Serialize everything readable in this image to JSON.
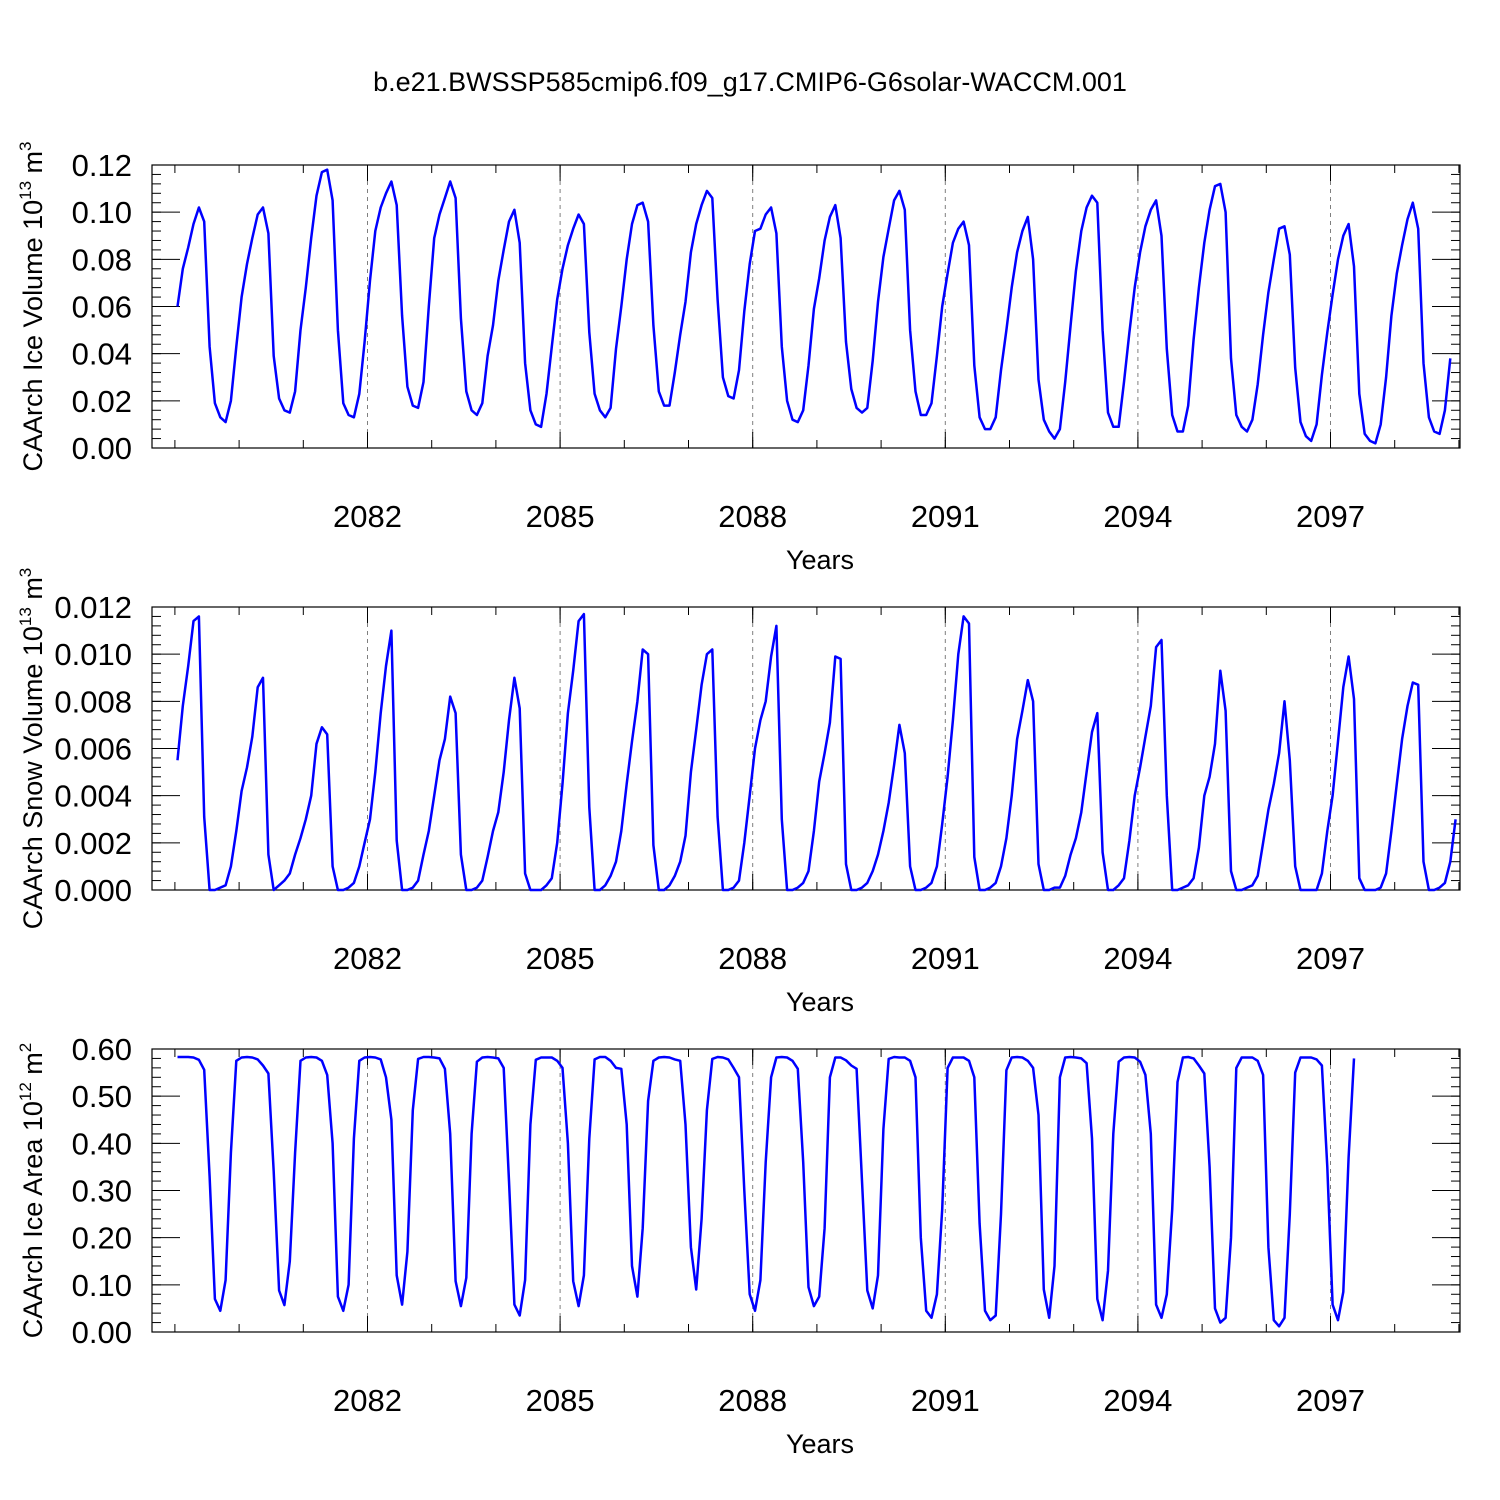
{
  "title": "b.e21.BWSSP585cmip6.f09_g17.CMIP6-G6solar-WACCM.001",
  "colors": {
    "series": "#0000ff",
    "axis": "#000000",
    "grid": "#7f7f7f"
  },
  "chart_data": [
    {
      "type": "line",
      "ylabel": {
        "prefix": "CAArch Ice Volume 10",
        "exp": "13",
        "unit": " m",
        "unit_exp": "3"
      },
      "xlabel": "Years",
      "xlim": [
        2079,
        2099
      ],
      "ylim": [
        0,
        0.12
      ],
      "yticks": [
        0.0,
        0.02,
        0.04,
        0.06,
        0.08,
        0.1,
        0.12
      ],
      "ytick_labels": [
        "0.00",
        "0.02",
        "0.04",
        "0.06",
        "0.08",
        "0.10",
        "0.12"
      ],
      "xticks": [
        2082,
        2085,
        2088,
        2091,
        2094,
        2097
      ],
      "xtick_labels": [
        "2082",
        "2085",
        "2088",
        "2091",
        "2094",
        "2097"
      ],
      "grid": "dashed vertical at labeled years",
      "series": [
        {
          "x_start": 2079.04,
          "x_step": 0.0833,
          "values": [
            0.06,
            0.076,
            0.085,
            0.095,
            0.102,
            0.096,
            0.043,
            0.019,
            0.013,
            0.011,
            0.02,
            0.043,
            0.064,
            0.078,
            0.089,
            0.099,
            0.102,
            0.091,
            0.039,
            0.021,
            0.016,
            0.015,
            0.024,
            0.05,
            0.068,
            0.089,
            0.107,
            0.117,
            0.118,
            0.105,
            0.05,
            0.019,
            0.014,
            0.013,
            0.023,
            0.045,
            0.071,
            0.092,
            0.102,
            0.108,
            0.113,
            0.103,
            0.056,
            0.026,
            0.018,
            0.017,
            0.028,
            0.06,
            0.089,
            0.099,
            0.106,
            0.113,
            0.106,
            0.055,
            0.024,
            0.016,
            0.014,
            0.019,
            0.039,
            0.052,
            0.071,
            0.084,
            0.096,
            0.101,
            0.087,
            0.036,
            0.016,
            0.01,
            0.009,
            0.023,
            0.043,
            0.063,
            0.076,
            0.086,
            0.093,
            0.099,
            0.095,
            0.049,
            0.023,
            0.016,
            0.013,
            0.017,
            0.042,
            0.06,
            0.08,
            0.095,
            0.103,
            0.104,
            0.096,
            0.052,
            0.024,
            0.018,
            0.018,
            0.032,
            0.048,
            0.062,
            0.083,
            0.095,
            0.103,
            0.109,
            0.106,
            0.063,
            0.03,
            0.022,
            0.021,
            0.033,
            0.058,
            0.078,
            0.092,
            0.093,
            0.099,
            0.102,
            0.091,
            0.043,
            0.02,
            0.012,
            0.011,
            0.016,
            0.035,
            0.059,
            0.072,
            0.088,
            0.098,
            0.103,
            0.089,
            0.045,
            0.025,
            0.017,
            0.015,
            0.017,
            0.037,
            0.062,
            0.081,
            0.093,
            0.105,
            0.109,
            0.101,
            0.05,
            0.024,
            0.014,
            0.014,
            0.019,
            0.039,
            0.06,
            0.074,
            0.087,
            0.093,
            0.096,
            0.086,
            0.035,
            0.013,
            0.008,
            0.008,
            0.013,
            0.033,
            0.05,
            0.068,
            0.083,
            0.092,
            0.098,
            0.08,
            0.029,
            0.012,
            0.007,
            0.004,
            0.008,
            0.028,
            0.052,
            0.075,
            0.092,
            0.102,
            0.107,
            0.104,
            0.05,
            0.015,
            0.009,
            0.009,
            0.028,
            0.049,
            0.068,
            0.083,
            0.094,
            0.101,
            0.105,
            0.09,
            0.042,
            0.014,
            0.007,
            0.007,
            0.018,
            0.046,
            0.068,
            0.087,
            0.101,
            0.111,
            0.112,
            0.1,
            0.038,
            0.014,
            0.009,
            0.007,
            0.012,
            0.027,
            0.048,
            0.066,
            0.08,
            0.093,
            0.094,
            0.082,
            0.034,
            0.011,
            0.005,
            0.003,
            0.01,
            0.031,
            0.049,
            0.065,
            0.08,
            0.09,
            0.095,
            0.077,
            0.023,
            0.006,
            0.003,
            0.002,
            0.01,
            0.03,
            0.056,
            0.074,
            0.086,
            0.097,
            0.104,
            0.093,
            0.036,
            0.013,
            0.007,
            0.006,
            0.016,
            0.038
          ]
        }
      ]
    },
    {
      "type": "line",
      "ylabel": {
        "prefix": "CAArch Snow Volume 10",
        "exp": "13",
        "unit": " m",
        "unit_exp": "3"
      },
      "xlabel": "Years",
      "xlim": [
        2079,
        2099
      ],
      "ylim": [
        0,
        0.012
      ],
      "yticks": [
        0.0,
        0.002,
        0.004,
        0.006,
        0.008,
        0.01,
        0.012
      ],
      "ytick_labels": [
        "0.000",
        "0.002",
        "0.004",
        "0.006",
        "0.008",
        "0.010",
        "0.012"
      ],
      "xticks": [
        2082,
        2085,
        2088,
        2091,
        2094,
        2097
      ],
      "xtick_labels": [
        "2082",
        "2085",
        "2088",
        "2091",
        "2094",
        "2097"
      ],
      "grid": "dashed vertical at labeled years",
      "series": [
        {
          "x_start": 2079.04,
          "x_step": 0.0833,
          "values": [
            0.0055,
            0.0078,
            0.0095,
            0.0114,
            0.0116,
            0.0031,
            0.0,
            0.0,
            0.0001,
            0.0002,
            0.001,
            0.0025,
            0.0042,
            0.0052,
            0.0065,
            0.0086,
            0.009,
            0.0015,
            0.0,
            0.0002,
            0.0004,
            0.0007,
            0.0015,
            0.0022,
            0.003,
            0.004,
            0.0062,
            0.0069,
            0.0066,
            0.001,
            0.0,
            0.0,
            0.0001,
            0.0003,
            0.001,
            0.002,
            0.003,
            0.005,
            0.0075,
            0.0095,
            0.011,
            0.0021,
            0.0,
            0.0,
            0.0001,
            0.0004,
            0.0015,
            0.0025,
            0.004,
            0.0055,
            0.0064,
            0.0082,
            0.0075,
            0.0015,
            0.0,
            0.0,
            0.0001,
            0.0004,
            0.0014,
            0.0025,
            0.0033,
            0.005,
            0.0072,
            0.009,
            0.0077,
            0.0007,
            0.0,
            0.0,
            0.0,
            0.0002,
            0.0005,
            0.002,
            0.0045,
            0.0075,
            0.0093,
            0.0114,
            0.0117,
            0.0035,
            0.0,
            0.0,
            0.0002,
            0.0006,
            0.0012,
            0.0025,
            0.0045,
            0.0063,
            0.008,
            0.0102,
            0.01,
            0.0019,
            0.0,
            0.0,
            0.0002,
            0.0006,
            0.0012,
            0.0023,
            0.005,
            0.0068,
            0.0087,
            0.01,
            0.0102,
            0.0031,
            0.0,
            0.0,
            0.0001,
            0.0004,
            0.002,
            0.004,
            0.006,
            0.0072,
            0.008,
            0.0099,
            0.0112,
            0.003,
            0.0,
            0.0,
            0.0001,
            0.0003,
            0.0008,
            0.0025,
            0.0046,
            0.0058,
            0.0071,
            0.0099,
            0.0098,
            0.0011,
            0.0,
            0.0,
            0.0001,
            0.0003,
            0.0008,
            0.0015,
            0.0025,
            0.0037,
            0.0053,
            0.007,
            0.0058,
            0.001,
            0.0,
            0.0,
            0.0001,
            0.0003,
            0.001,
            0.0028,
            0.0048,
            0.0072,
            0.01,
            0.0116,
            0.0113,
            0.0014,
            0.0,
            0.0,
            0.0001,
            0.0003,
            0.001,
            0.0022,
            0.004,
            0.0064,
            0.0076,
            0.0089,
            0.008,
            0.0011,
            0.0,
            0.0,
            0.0001,
            0.0001,
            0.0006,
            0.0015,
            0.0022,
            0.0033,
            0.005,
            0.0067,
            0.0075,
            0.0016,
            0.0,
            0.0,
            0.0002,
            0.0005,
            0.0021,
            0.004,
            0.0052,
            0.0065,
            0.0078,
            0.0103,
            0.0106,
            0.004,
            0.0,
            0.0,
            0.0001,
            0.0002,
            0.0005,
            0.0018,
            0.004,
            0.0048,
            0.0062,
            0.0093,
            0.0076,
            0.0008,
            0.0,
            0.0,
            0.0001,
            0.0002,
            0.0006,
            0.002,
            0.0034,
            0.0045,
            0.0058,
            0.008,
            0.0055,
            0.001,
            0.0,
            0.0,
            0.0,
            0.0,
            0.0007,
            0.0025,
            0.004,
            0.0063,
            0.0086,
            0.0099,
            0.0081,
            0.0005,
            0.0,
            0.0,
            0.0,
            0.0001,
            0.0007,
            0.0025,
            0.0045,
            0.0064,
            0.0078,
            0.0088,
            0.0087,
            0.0012,
            0.0,
            0.0,
            0.0001,
            0.0003,
            0.0012,
            0.003
          ]
        }
      ]
    },
    {
      "type": "line",
      "ylabel": {
        "prefix": "CAArch Ice Area 10",
        "exp": "12",
        "unit": " m",
        "unit_exp": "2"
      },
      "xlabel": "Years",
      "xlim": [
        2079,
        2099
      ],
      "ylim": [
        0,
        0.6
      ],
      "yticks": [
        0.0,
        0.1,
        0.2,
        0.3,
        0.4,
        0.5,
        0.6
      ],
      "ytick_labels": [
        "0.00",
        "0.10",
        "0.20",
        "0.30",
        "0.40",
        "0.50",
        "0.60"
      ],
      "xticks": [
        2082,
        2085,
        2088,
        2091,
        2094,
        2097
      ],
      "xtick_labels": [
        "2082",
        "2085",
        "2088",
        "2091",
        "2094",
        "2097"
      ],
      "grid": "dashed vertical at labeled years",
      "series": [
        {
          "x_start": 2079.04,
          "x_step": 0.0833,
          "values": [
            0.583,
            0.583,
            0.583,
            0.582,
            0.577,
            0.556,
            0.33,
            0.07,
            0.045,
            0.11,
            0.38,
            0.575,
            0.582,
            0.583,
            0.582,
            0.578,
            0.565,
            0.548,
            0.34,
            0.088,
            0.057,
            0.15,
            0.38,
            0.575,
            0.582,
            0.583,
            0.582,
            0.575,
            0.545,
            0.4,
            0.075,
            0.045,
            0.1,
            0.41,
            0.575,
            0.582,
            0.583,
            0.582,
            0.578,
            0.54,
            0.45,
            0.12,
            0.058,
            0.17,
            0.47,
            0.579,
            0.583,
            0.583,
            0.582,
            0.58,
            0.558,
            0.42,
            0.108,
            0.055,
            0.115,
            0.42,
            0.573,
            0.582,
            0.583,
            0.582,
            0.58,
            0.56,
            0.32,
            0.058,
            0.035,
            0.11,
            0.44,
            0.577,
            0.582,
            0.582,
            0.582,
            0.575,
            0.56,
            0.4,
            0.108,
            0.055,
            0.12,
            0.41,
            0.578,
            0.583,
            0.583,
            0.575,
            0.56,
            0.558,
            0.44,
            0.14,
            0.075,
            0.22,
            0.49,
            0.575,
            0.582,
            0.583,
            0.582,
            0.578,
            0.575,
            0.44,
            0.18,
            0.09,
            0.24,
            0.47,
            0.579,
            0.583,
            0.582,
            0.578,
            0.56,
            0.54,
            0.3,
            0.08,
            0.045,
            0.11,
            0.36,
            0.54,
            0.582,
            0.583,
            0.582,
            0.575,
            0.558,
            0.36,
            0.095,
            0.055,
            0.075,
            0.22,
            0.54,
            0.582,
            0.582,
            0.576,
            0.565,
            0.558,
            0.32,
            0.088,
            0.05,
            0.12,
            0.43,
            0.579,
            0.583,
            0.582,
            0.582,
            0.575,
            0.54,
            0.2,
            0.045,
            0.03,
            0.08,
            0.26,
            0.56,
            0.582,
            0.582,
            0.582,
            0.575,
            0.54,
            0.23,
            0.045,
            0.025,
            0.035,
            0.25,
            0.555,
            0.582,
            0.583,
            0.582,
            0.575,
            0.56,
            0.46,
            0.09,
            0.03,
            0.14,
            0.54,
            0.582,
            0.583,
            0.582,
            0.58,
            0.57,
            0.41,
            0.07,
            0.025,
            0.13,
            0.42,
            0.573,
            0.582,
            0.583,
            0.582,
            0.573,
            0.545,
            0.42,
            0.058,
            0.03,
            0.08,
            0.26,
            0.53,
            0.582,
            0.583,
            0.58,
            0.565,
            0.548,
            0.35,
            0.05,
            0.02,
            0.03,
            0.2,
            0.56,
            0.582,
            0.582,
            0.582,
            0.575,
            0.545,
            0.18,
            0.025,
            0.012,
            0.03,
            0.25,
            0.55,
            0.582,
            0.582,
            0.582,
            0.578,
            0.565,
            0.35,
            0.058,
            0.025,
            0.085,
            0.37,
            0.58
          ]
        }
      ]
    }
  ]
}
